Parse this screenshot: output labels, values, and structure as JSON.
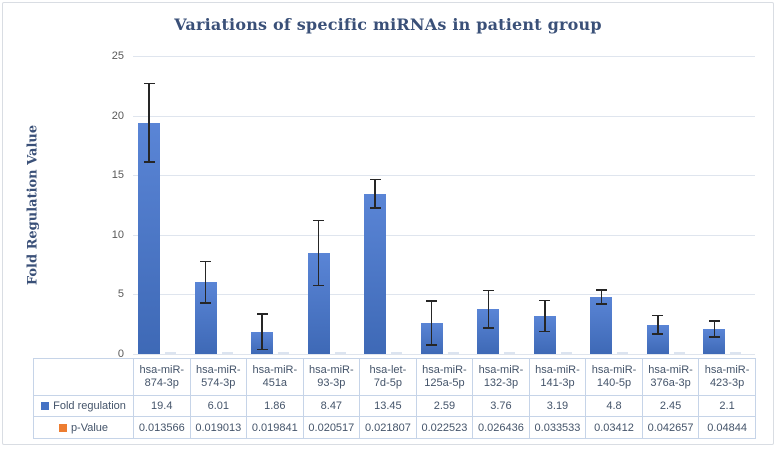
{
  "frame": {
    "background": "#ffffff",
    "border_color": "#d9dde3"
  },
  "chart_data": {
    "type": "bar",
    "title": "Variations of specific miRNAs in patient group",
    "ylabel": "Fold Regulation Value",
    "xlabel": "",
    "ylim": [
      0,
      25
    ],
    "yticks": [
      0,
      5,
      10,
      15,
      20,
      25
    ],
    "grid": true,
    "legend_position": "attached data table row headers",
    "categories": [
      "hsa-miR-874-3p",
      "hsa-miR-574-3p",
      "hsa-miR-451a",
      "hsa-miR-93-3p",
      "hsa-let-7d-5p",
      "hsa-miR-125a-5p",
      "hsa-miR-132-3p",
      "hsa-miR-141-3p",
      "hsa-miR-140-5p",
      "hsa-miR-376a-3p",
      "hsa-miR-423-3p"
    ],
    "series": [
      {
        "name": "Fold regulation",
        "color": "#4472C4",
        "values": [
          19.4,
          6.01,
          1.86,
          8.47,
          13.45,
          2.59,
          3.76,
          3.19,
          4.8,
          2.45,
          2.1
        ],
        "error_bars": [
          3.35,
          1.8,
          1.55,
          2.8,
          1.25,
          1.9,
          1.65,
          1.35,
          0.65,
          0.85,
          0.75
        ]
      },
      {
        "name": "p-Value",
        "color": "#ED7D31",
        "values": [
          0.013566,
          0.019013,
          0.019841,
          0.020517,
          0.021807,
          0.022523,
          0.026436,
          0.033533,
          0.03412,
          0.042657,
          0.04844
        ]
      }
    ]
  },
  "data_table": {
    "rows": [
      {
        "label": "Fold regulation",
        "swatch_color": "#4472C4",
        "values": [
          "19.4",
          "6.01",
          "1.86",
          "8.47",
          "13.45",
          "2.59",
          "3.76",
          "3.19",
          "4.8",
          "2.45",
          "2.1"
        ]
      },
      {
        "label": "p-Value",
        "swatch_color": "#ED7D31",
        "values": [
          "0.013566",
          "0.019013",
          "0.019841",
          "0.020517",
          "0.021807",
          "0.022523",
          "0.026436",
          "0.033533",
          "0.03412",
          "0.042657",
          "0.04844"
        ]
      }
    ]
  },
  "colors": {
    "bar_fill": "#4472C4",
    "error_bar": "#262626",
    "gridline": "#dfe5ee",
    "tick_text": "#595959",
    "title_text": "#3a5078",
    "table_text": "#44546a",
    "table_border": "#c6d4e8",
    "pvalue_sliver": "#dce4f0"
  }
}
